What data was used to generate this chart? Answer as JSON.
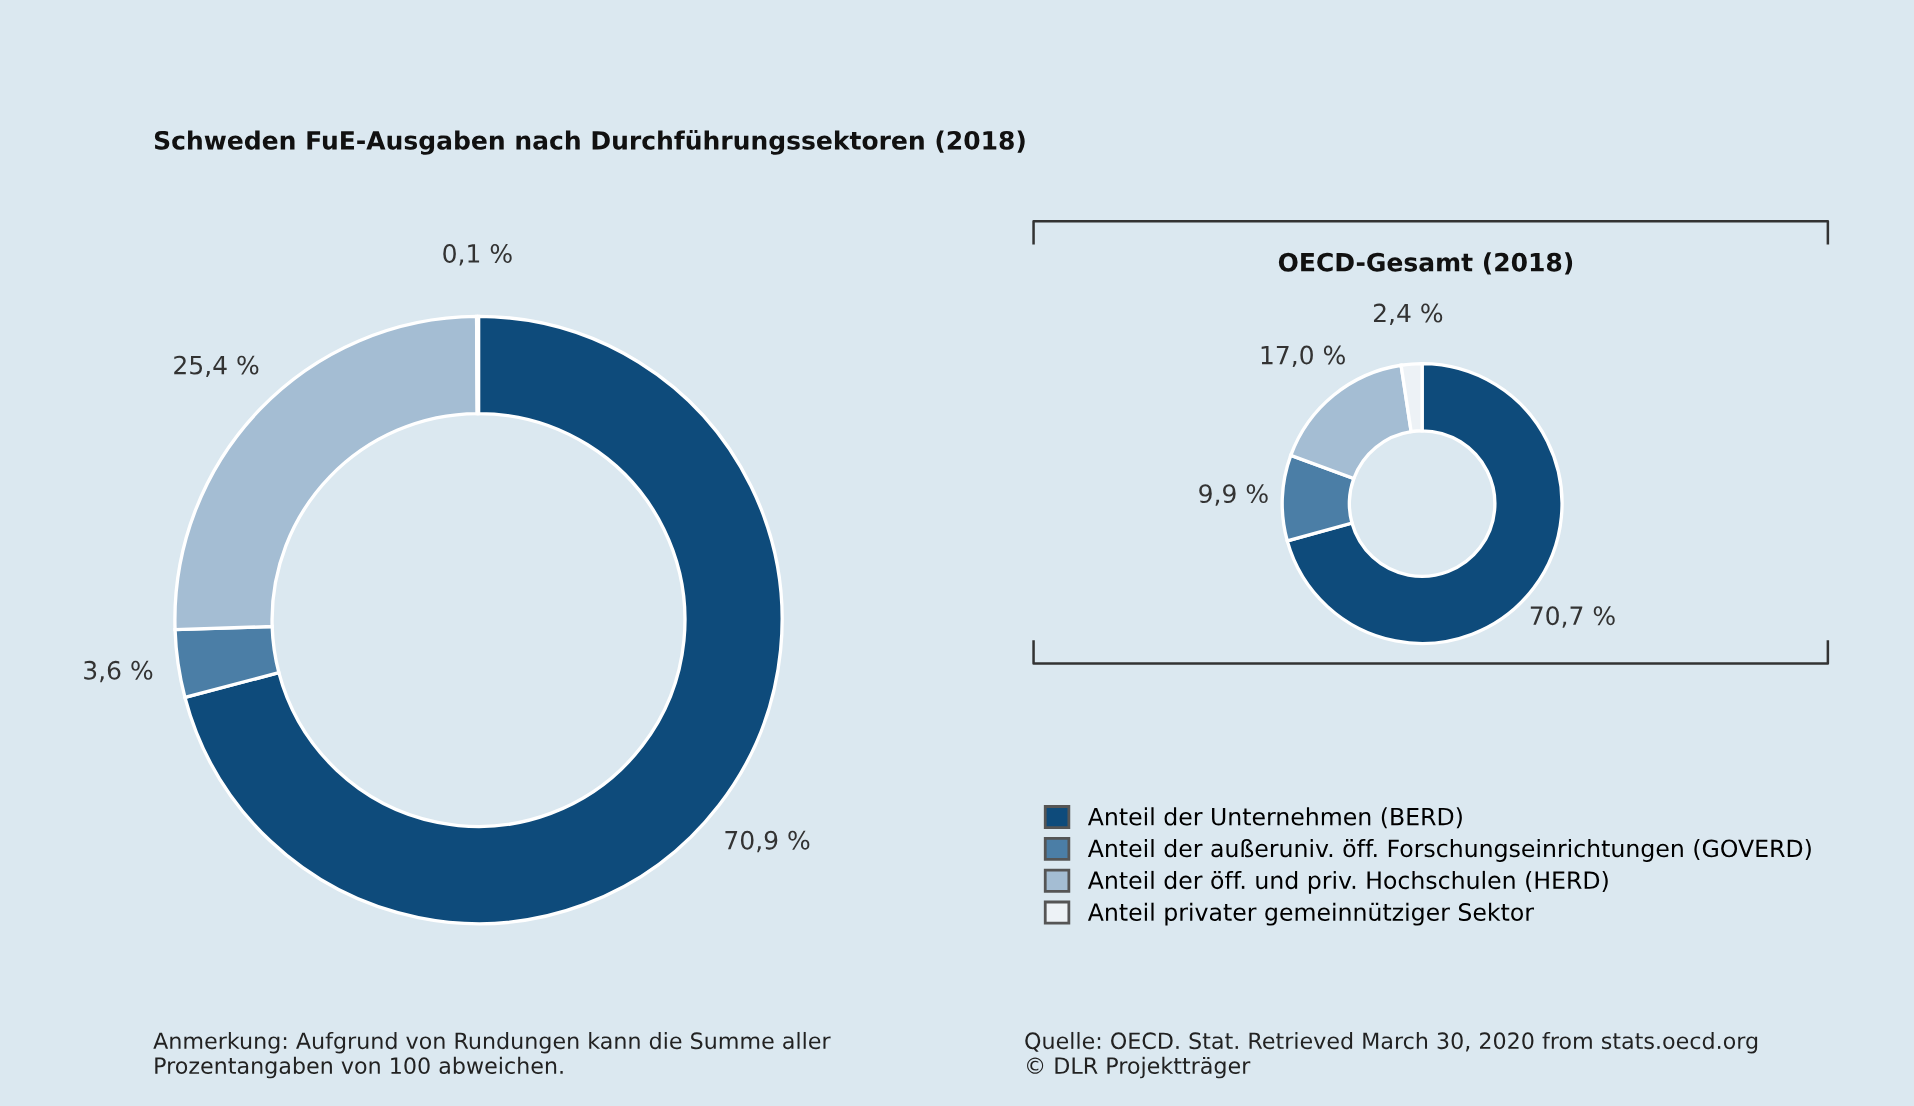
{
  "chart_data": [
    {
      "type": "donut",
      "title": "Schweden FuE-Ausgaben nach Durchführungssektoren (2018)",
      "categories": [
        "Anteil der Unternehmen (BERD)",
        "Anteil der außeruniv. öff. Forschungseinrichtungen (GOVERD)",
        "Anteil der öff. und priv. Hochschulen (HERD)",
        "Anteil privater gemeinnütziger Sektor"
      ],
      "values": [
        70.9,
        3.6,
        25.4,
        0.1
      ],
      "value_labels": [
        "70,9 %",
        "3,6 %",
        "25,4 %",
        "0,1 %"
      ],
      "colors": [
        "#0e4b7b",
        "#4b7ea6",
        "#a4bdd3",
        "#edf2f6"
      ],
      "legend": "bottom right",
      "annotations": [
        "Anmerkung: Aufgrund von Rundungen kann die Summe aller\nProzentangaben von 100 abweichen."
      ]
    },
    {
      "type": "donut",
      "title": "OECD-Gesamt (2018)",
      "values": [
        70.7,
        9.9,
        17.0,
        2.4
      ],
      "value_labels": [
        "70,7 %",
        "9,9 %",
        "17,0 %",
        "2,4 %"
      ],
      "colors": [
        "#0e4b7b",
        "#4b7ea6",
        "#a4bdd3",
        "#edf2f6"
      ],
      "annotations": [
        "Quelle: OECD. Stat. Retrieved March 30, 2020 from stats.oecd.org\n© DLR Projektträger"
      ]
    }
  ]
}
